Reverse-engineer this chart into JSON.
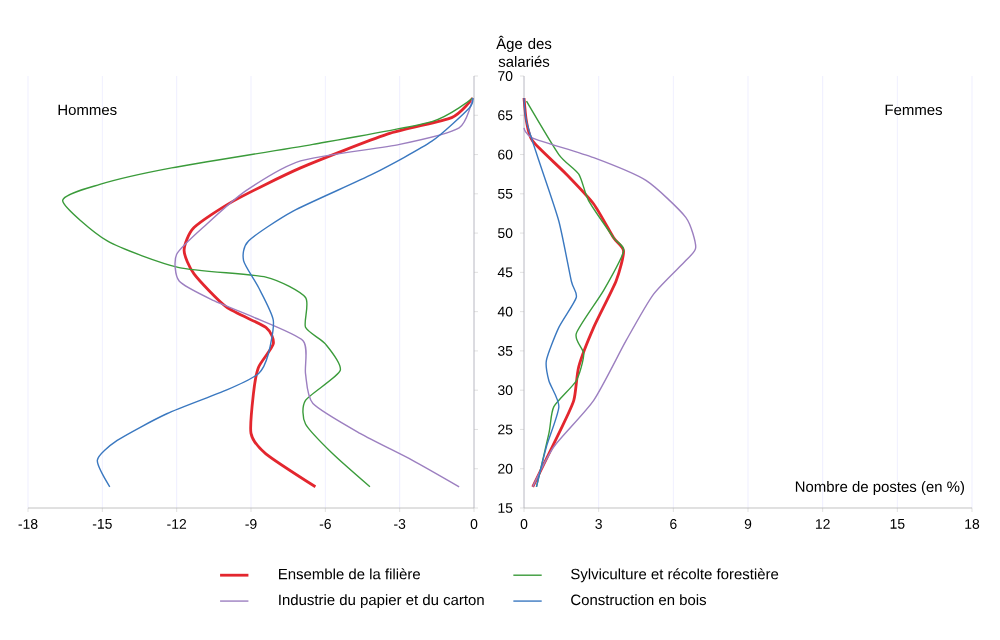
{
  "chart_data": [
    {
      "type": "line",
      "xlim": [
        -18,
        0
      ],
      "xticks": [
        -18,
        -15,
        -12,
        -9,
        -6,
        -3,
        0
      ],
      "ylim": [
        15,
        70
      ],
      "yticks": [
        15,
        20,
        25,
        30,
        35,
        40,
        45,
        50,
        55,
        60,
        65,
        70
      ],
      "grid": "x",
      "legend": "bottom",
      "tick_labels": "x",
      "annotations": [
        "Hommes"
      ],
      "series": [
        {
          "name": "Ensemble de la filière",
          "color": "#e3262e",
          "x": [
            -6.4,
            -8.4,
            -9.0,
            -8.9,
            -8.7,
            -8.1,
            -8.4,
            -10.0,
            -11.3,
            -11.7,
            -11.3,
            -9.7,
            -7.0,
            -3.5,
            -0.9,
            -0.05
          ],
          "values": [
            17.7,
            21.9,
            24.5,
            29.6,
            32.9,
            35.9,
            38,
            40.6,
            44.8,
            47.8,
            50.7,
            54.1,
            58.3,
            62.6,
            64.7,
            67.2
          ]
        },
        {
          "name": "Sylviculture et récolte forestière",
          "color": "#3a9b3a",
          "x": [
            -4.2,
            -5.7,
            -6.8,
            -6.8,
            -5.4,
            -6.0,
            -6.8,
            -6.8,
            -8.4,
            -11.9,
            -14.8,
            -16.6,
            -15.1,
            -12.2,
            -6.5,
            -1.7,
            -0.05
          ],
          "values": [
            17.7,
            21.9,
            25.7,
            28.7,
            32.5,
            35.9,
            38,
            41.8,
            44.4,
            45.6,
            49.0,
            54.1,
            56.2,
            58.3,
            61.3,
            64.2,
            67.2
          ]
        },
        {
          "name": "Industrie du papier et du carton",
          "color": "#9c7fc0",
          "x": [
            -0.6,
            -2.5,
            -4.6,
            -6.5,
            -6.8,
            -6.9,
            -8.9,
            -10.5,
            -11.9,
            -12.0,
            -10.8,
            -9.2,
            -7.0,
            -3.0,
            -0.6,
            -0.05
          ],
          "values": [
            17.7,
            21.1,
            24.5,
            28.3,
            32.1,
            36.3,
            39.3,
            41.4,
            43.9,
            47.3,
            51.1,
            55.4,
            59.2,
            61.3,
            63.4,
            67.2
          ]
        },
        {
          "name": "Construction en bois",
          "color": "#3a78c0",
          "x": [
            -14.7,
            -15.2,
            -14.4,
            -12.4,
            -10.0,
            -8.7,
            -8.3,
            -8.1,
            -8.7,
            -9.3,
            -9.1,
            -7.3,
            -4.1,
            -1.7,
            -0.2,
            -0.05
          ],
          "values": [
            17.7,
            21.1,
            23.6,
            27,
            30,
            32.1,
            34.6,
            38.9,
            43.1,
            46.5,
            49.0,
            52.8,
            57.5,
            61.7,
            65.9,
            67.2
          ]
        }
      ]
    },
    {
      "type": "line",
      "xlim": [
        0,
        18
      ],
      "xticks": [
        0,
        3,
        6,
        9,
        12,
        15,
        18
      ],
      "ylim": [
        15,
        70
      ],
      "yticks": [
        15,
        20,
        25,
        30,
        35,
        40,
        45,
        50,
        55,
        60,
        65,
        70
      ],
      "grid": "x",
      "xlabel": "Nombre de postes (en %)",
      "ylabel": "Âge des salariés",
      "annotations": [
        "Femmes"
      ],
      "series": [
        {
          "color": "#e3262e",
          "x": [
            0.35,
            1.4,
            2.0,
            2.2,
            2.8,
            3.7,
            4.0,
            3.6,
            2.8,
            1.7,
            0.35,
            0.1,
            0
          ],
          "values": [
            17.7,
            24.5,
            28.7,
            33,
            38,
            43.9,
            47.7,
            49.4,
            53.7,
            57.5,
            61.7,
            64.2,
            67.2
          ]
        },
        {
          "color": "#3a9b3a",
          "x": [
            0.5,
            1.0,
            1.2,
            2.1,
            2.4,
            2.1,
            3.2,
            4.0,
            3.6,
            2.6,
            2.2,
            1.4,
            0.1
          ],
          "values": [
            17.7,
            24.5,
            27.9,
            31.2,
            34.6,
            37.2,
            42.7,
            47.7,
            49.4,
            54.1,
            57.5,
            60,
            66.8
          ]
        },
        {
          "color": "#9c7fc0",
          "x": [
            0.35,
            1.2,
            2.8,
            4.1,
            5.2,
            6.5,
            6.9,
            6.5,
            4.9,
            2.8,
            0.35,
            0
          ],
          "values": [
            17.7,
            22.8,
            28.7,
            36.3,
            42.2,
            46.5,
            48.2,
            52,
            56.7,
            59.6,
            62.1,
            63.4
          ]
        },
        {
          "color": "#3a78c0",
          "x": [
            0.5,
            0.9,
            1.4,
            1.0,
            0.9,
            1.4,
            2.1,
            1.9,
            1.4,
            0.6,
            0.1,
            0
          ],
          "values": [
            17.7,
            22.8,
            27.9,
            31.2,
            33.8,
            38,
            41.8,
            43.9,
            51.5,
            59.2,
            64.2,
            67.2
          ]
        }
      ]
    }
  ]
}
